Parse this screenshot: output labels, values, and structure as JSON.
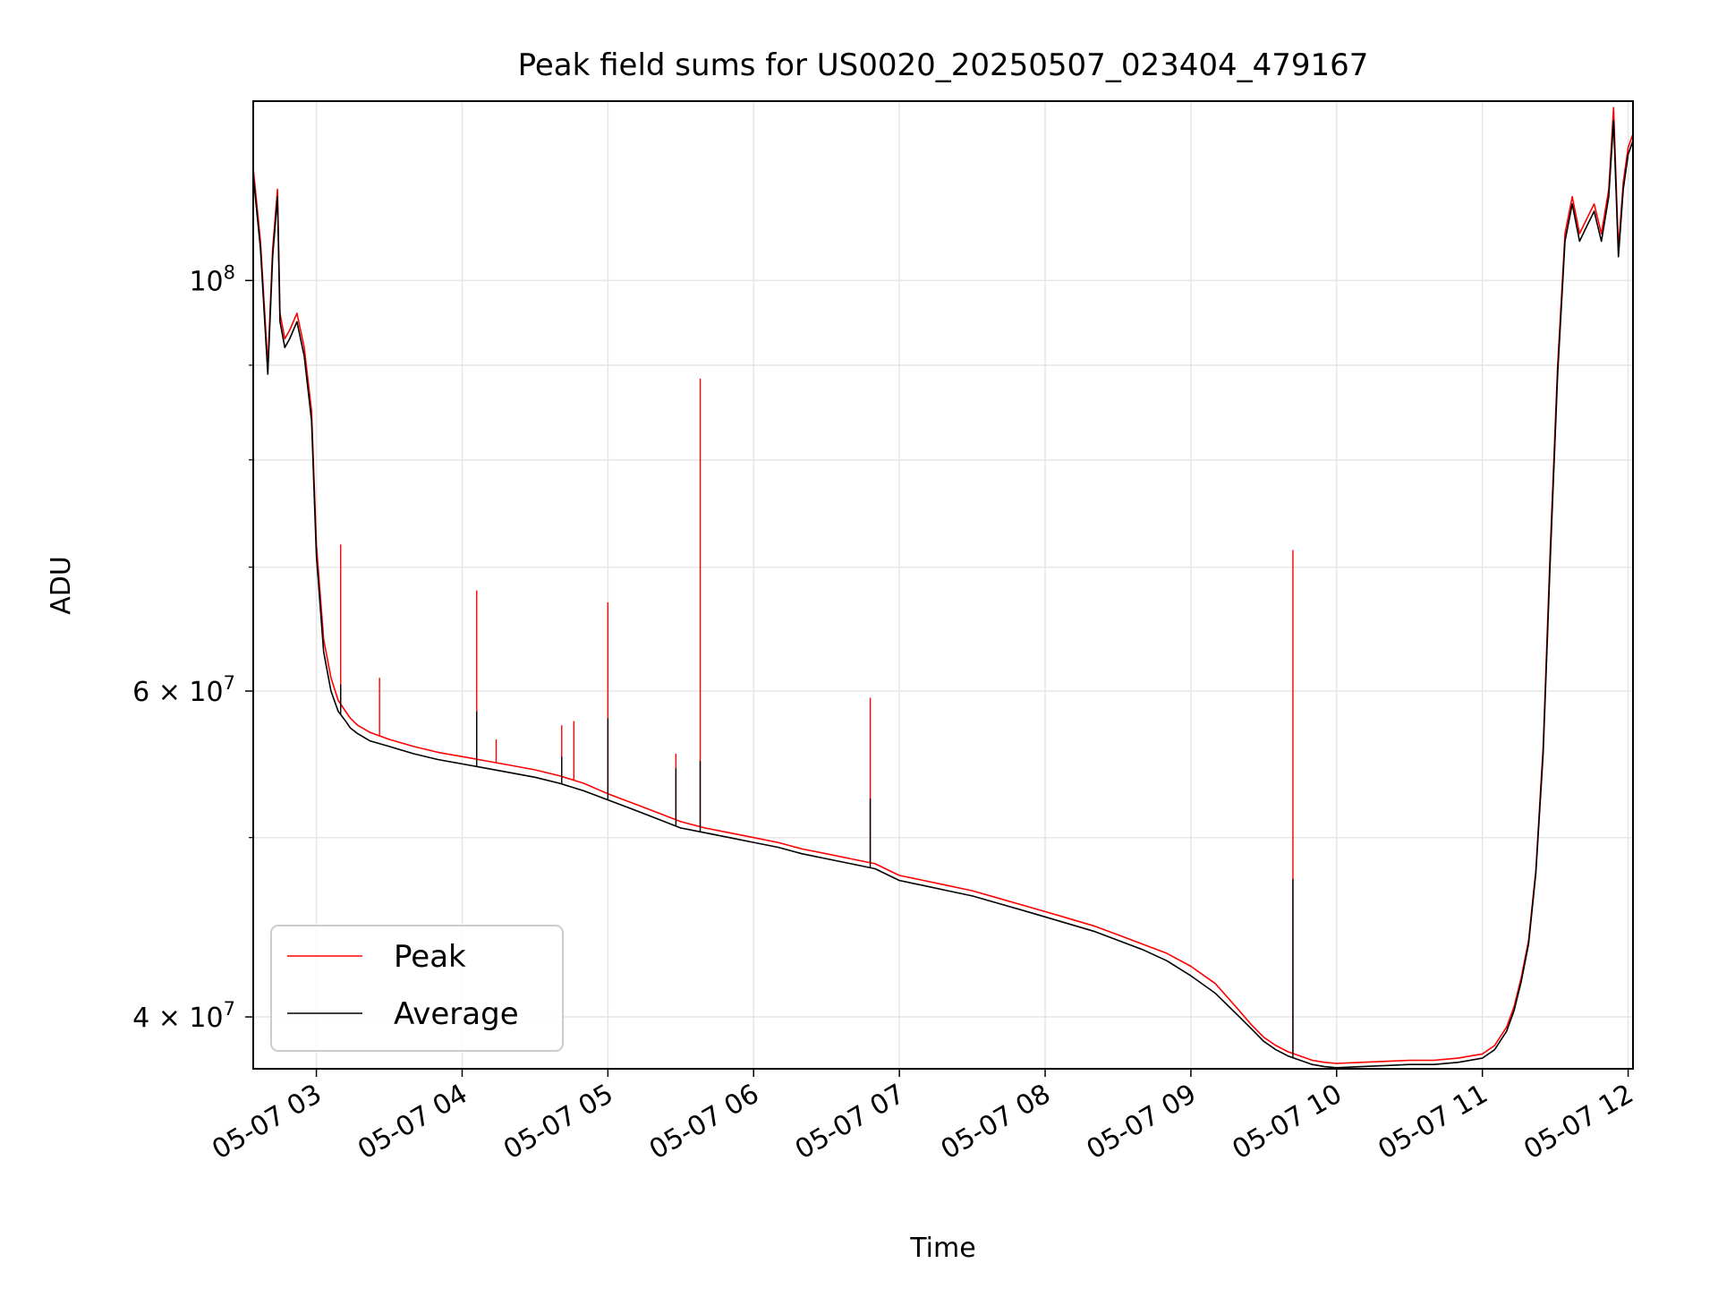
{
  "chart_data": {
    "type": "line",
    "title": "Peak field sums for US0020_20250507_023404_479167",
    "xlabel": "Time",
    "ylabel": "ADU",
    "x_scale": "time",
    "y_scale": "log",
    "xlim": [
      "2025-05-07 02:34",
      "2025-05-07 12:02"
    ],
    "ylim": [
      37500000,
      125000000
    ],
    "x_ticks": [
      "05-07 03",
      "05-07 04",
      "05-07 05",
      "05-07 06",
      "05-07 07",
      "05-07 08",
      "05-07 09",
      "05-07 10",
      "05-07 11",
      "05-07 12"
    ],
    "y_tick_labels": [
      {
        "value": 40000000,
        "base": "4 × 10",
        "exp": "7"
      },
      {
        "value": 60000000,
        "base": "6 × 10",
        "exp": "7"
      },
      {
        "value": 100000000,
        "base": "10",
        "exp": "8"
      }
    ],
    "y_minor_ticks": [
      50000000,
      70000000,
      80000000,
      90000000
    ],
    "grid": true,
    "legend_position": "lower-left",
    "series": [
      {
        "name": "Peak",
        "color": "#ff0000",
        "x": [
          "02:34",
          "02:37",
          "02:40",
          "02:42",
          "02:44",
          "02:45",
          "02:47",
          "02:49",
          "02:52",
          "02:55",
          "02:58",
          "03:00",
          "03:03",
          "03:06",
          "03:09",
          "03:12",
          "03:14",
          "03:17",
          "03:22",
          "03:30",
          "03:40",
          "03:50",
          "04:00",
          "04:10",
          "04:20",
          "04:30",
          "04:40",
          "04:50",
          "05:00",
          "05:10",
          "05:20",
          "05:30",
          "05:40",
          "05:50",
          "06:00",
          "06:10",
          "06:20",
          "06:30",
          "06:40",
          "06:50",
          "07:00",
          "07:10",
          "07:20",
          "07:30",
          "07:40",
          "07:50",
          "08:00",
          "08:10",
          "08:20",
          "08:30",
          "08:40",
          "08:50",
          "09:00",
          "09:10",
          "09:15",
          "09:20",
          "09:25",
          "09:30",
          "09:35",
          "09:40",
          "09:45",
          "09:50",
          "09:55",
          "10:00",
          "10:10",
          "10:20",
          "10:30",
          "10:40",
          "10:50",
          "11:00",
          "11:05",
          "11:10",
          "11:13",
          "11:16",
          "11:19",
          "11:22",
          "11:25",
          "11:28",
          "11:31",
          "11:34",
          "11:37",
          "11:40",
          "11:43",
          "11:46",
          "11:49",
          "11:52",
          "11:54",
          "11:56",
          "11:58",
          "12:00",
          "12:02"
        ],
        "y": [
          115000000,
          105000000,
          90000000,
          104000000,
          112000000,
          96000000,
          93000000,
          94000000,
          96000000,
          92000000,
          85000000,
          72000000,
          64000000,
          61000000,
          59300000,
          58500000,
          58000000,
          57500000,
          57000000,
          56500000,
          56000000,
          55600000,
          55300000,
          55000000,
          54700000,
          54400000,
          54000000,
          53500000,
          52800000,
          52200000,
          51600000,
          51000000,
          50600000,
          50300000,
          50000000,
          49700000,
          49300000,
          49000000,
          48700000,
          48400000,
          47700000,
          47400000,
          47100000,
          46800000,
          46400000,
          46000000,
          45600000,
          45200000,
          44800000,
          44300000,
          43800000,
          43300000,
          42600000,
          41700000,
          41000000,
          40300000,
          39600000,
          39000000,
          38600000,
          38300000,
          38100000,
          37900000,
          37800000,
          37750000,
          37800000,
          37850000,
          37900000,
          37900000,
          38000000,
          38200000,
          38600000,
          39500000,
          40500000,
          42000000,
          44000000,
          48000000,
          56000000,
          72000000,
          90000000,
          106000000,
          111000000,
          106000000,
          108000000,
          110000000,
          106000000,
          112000000,
          124000000,
          104000000,
          113000000,
          118000000,
          120000000
        ],
        "spikes": [
          {
            "x": "03:10",
            "y": 72000000
          },
          {
            "x": "03:26",
            "y": 61000000
          },
          {
            "x": "04:06",
            "y": 68000000
          },
          {
            "x": "04:14",
            "y": 56500000
          },
          {
            "x": "04:41",
            "y": 57500000
          },
          {
            "x": "04:46",
            "y": 57800000
          },
          {
            "x": "05:00",
            "y": 67000000
          },
          {
            "x": "05:28",
            "y": 55500000
          },
          {
            "x": "05:38",
            "y": 88500000
          },
          {
            "x": "06:48",
            "y": 59500000
          },
          {
            "x": "09:42",
            "y": 71500000
          }
        ]
      },
      {
        "name": "Average",
        "color": "#000000",
        "x": [
          "02:34",
          "02:37",
          "02:40",
          "02:42",
          "02:44",
          "02:45",
          "02:47",
          "02:49",
          "02:52",
          "02:55",
          "02:58",
          "03:00",
          "03:03",
          "03:06",
          "03:09",
          "03:12",
          "03:14",
          "03:17",
          "03:22",
          "03:30",
          "03:40",
          "03:50",
          "04:00",
          "04:10",
          "04:20",
          "04:30",
          "04:40",
          "04:50",
          "05:00",
          "05:10",
          "05:20",
          "05:30",
          "05:40",
          "05:50",
          "06:00",
          "06:10",
          "06:20",
          "06:30",
          "06:40",
          "06:50",
          "07:00",
          "07:10",
          "07:20",
          "07:30",
          "07:40",
          "07:50",
          "08:00",
          "08:10",
          "08:20",
          "08:30",
          "08:40",
          "08:50",
          "09:00",
          "09:10",
          "09:15",
          "09:20",
          "09:25",
          "09:30",
          "09:35",
          "09:40",
          "09:45",
          "09:50",
          "09:55",
          "10:00",
          "10:10",
          "10:20",
          "10:30",
          "10:40",
          "10:50",
          "11:00",
          "11:05",
          "11:10",
          "11:13",
          "11:16",
          "11:19",
          "11:22",
          "11:25",
          "11:28",
          "11:31",
          "11:34",
          "11:37",
          "11:40",
          "11:43",
          "11:46",
          "11:49",
          "11:52",
          "11:54",
          "11:56",
          "11:58",
          "12:00",
          "12:02"
        ],
        "y": [
          114000000,
          104000000,
          89000000,
          103000000,
          111000000,
          95000000,
          92000000,
          93000000,
          95000000,
          91000000,
          84000000,
          71000000,
          63000000,
          60000000,
          58500000,
          57800000,
          57300000,
          56900000,
          56400000,
          56000000,
          55500000,
          55100000,
          54800000,
          54500000,
          54200000,
          53900000,
          53500000,
          53000000,
          52400000,
          51800000,
          51200000,
          50600000,
          50300000,
          50000000,
          49700000,
          49400000,
          49000000,
          48700000,
          48400000,
          48100000,
          47400000,
          47100000,
          46800000,
          46500000,
          46100000,
          45700000,
          45300000,
          44900000,
          44500000,
          44000000,
          43500000,
          42900000,
          42100000,
          41200000,
          40600000,
          40000000,
          39400000,
          38800000,
          38400000,
          38100000,
          37900000,
          37700000,
          37600000,
          37550000,
          37600000,
          37650000,
          37700000,
          37700000,
          37800000,
          38000000,
          38400000,
          39300000,
          40300000,
          41800000,
          43800000,
          47800000,
          55500000,
          71000000,
          89000000,
          105000000,
          110000000,
          105000000,
          107000000,
          109000000,
          105000000,
          111000000,
          122000000,
          103000000,
          112000000,
          117000000,
          119000000
        ],
        "spikes": [
          {
            "x": "03:10",
            "y": 60500000
          },
          {
            "x": "04:06",
            "y": 58500000
          },
          {
            "x": "04:41",
            "y": 55300000
          },
          {
            "x": "05:00",
            "y": 58000000
          },
          {
            "x": "05:28",
            "y": 54500000
          },
          {
            "x": "05:38",
            "y": 55000000
          },
          {
            "x": "06:48",
            "y": 52500000
          },
          {
            "x": "09:42",
            "y": 47500000
          }
        ]
      }
    ]
  }
}
